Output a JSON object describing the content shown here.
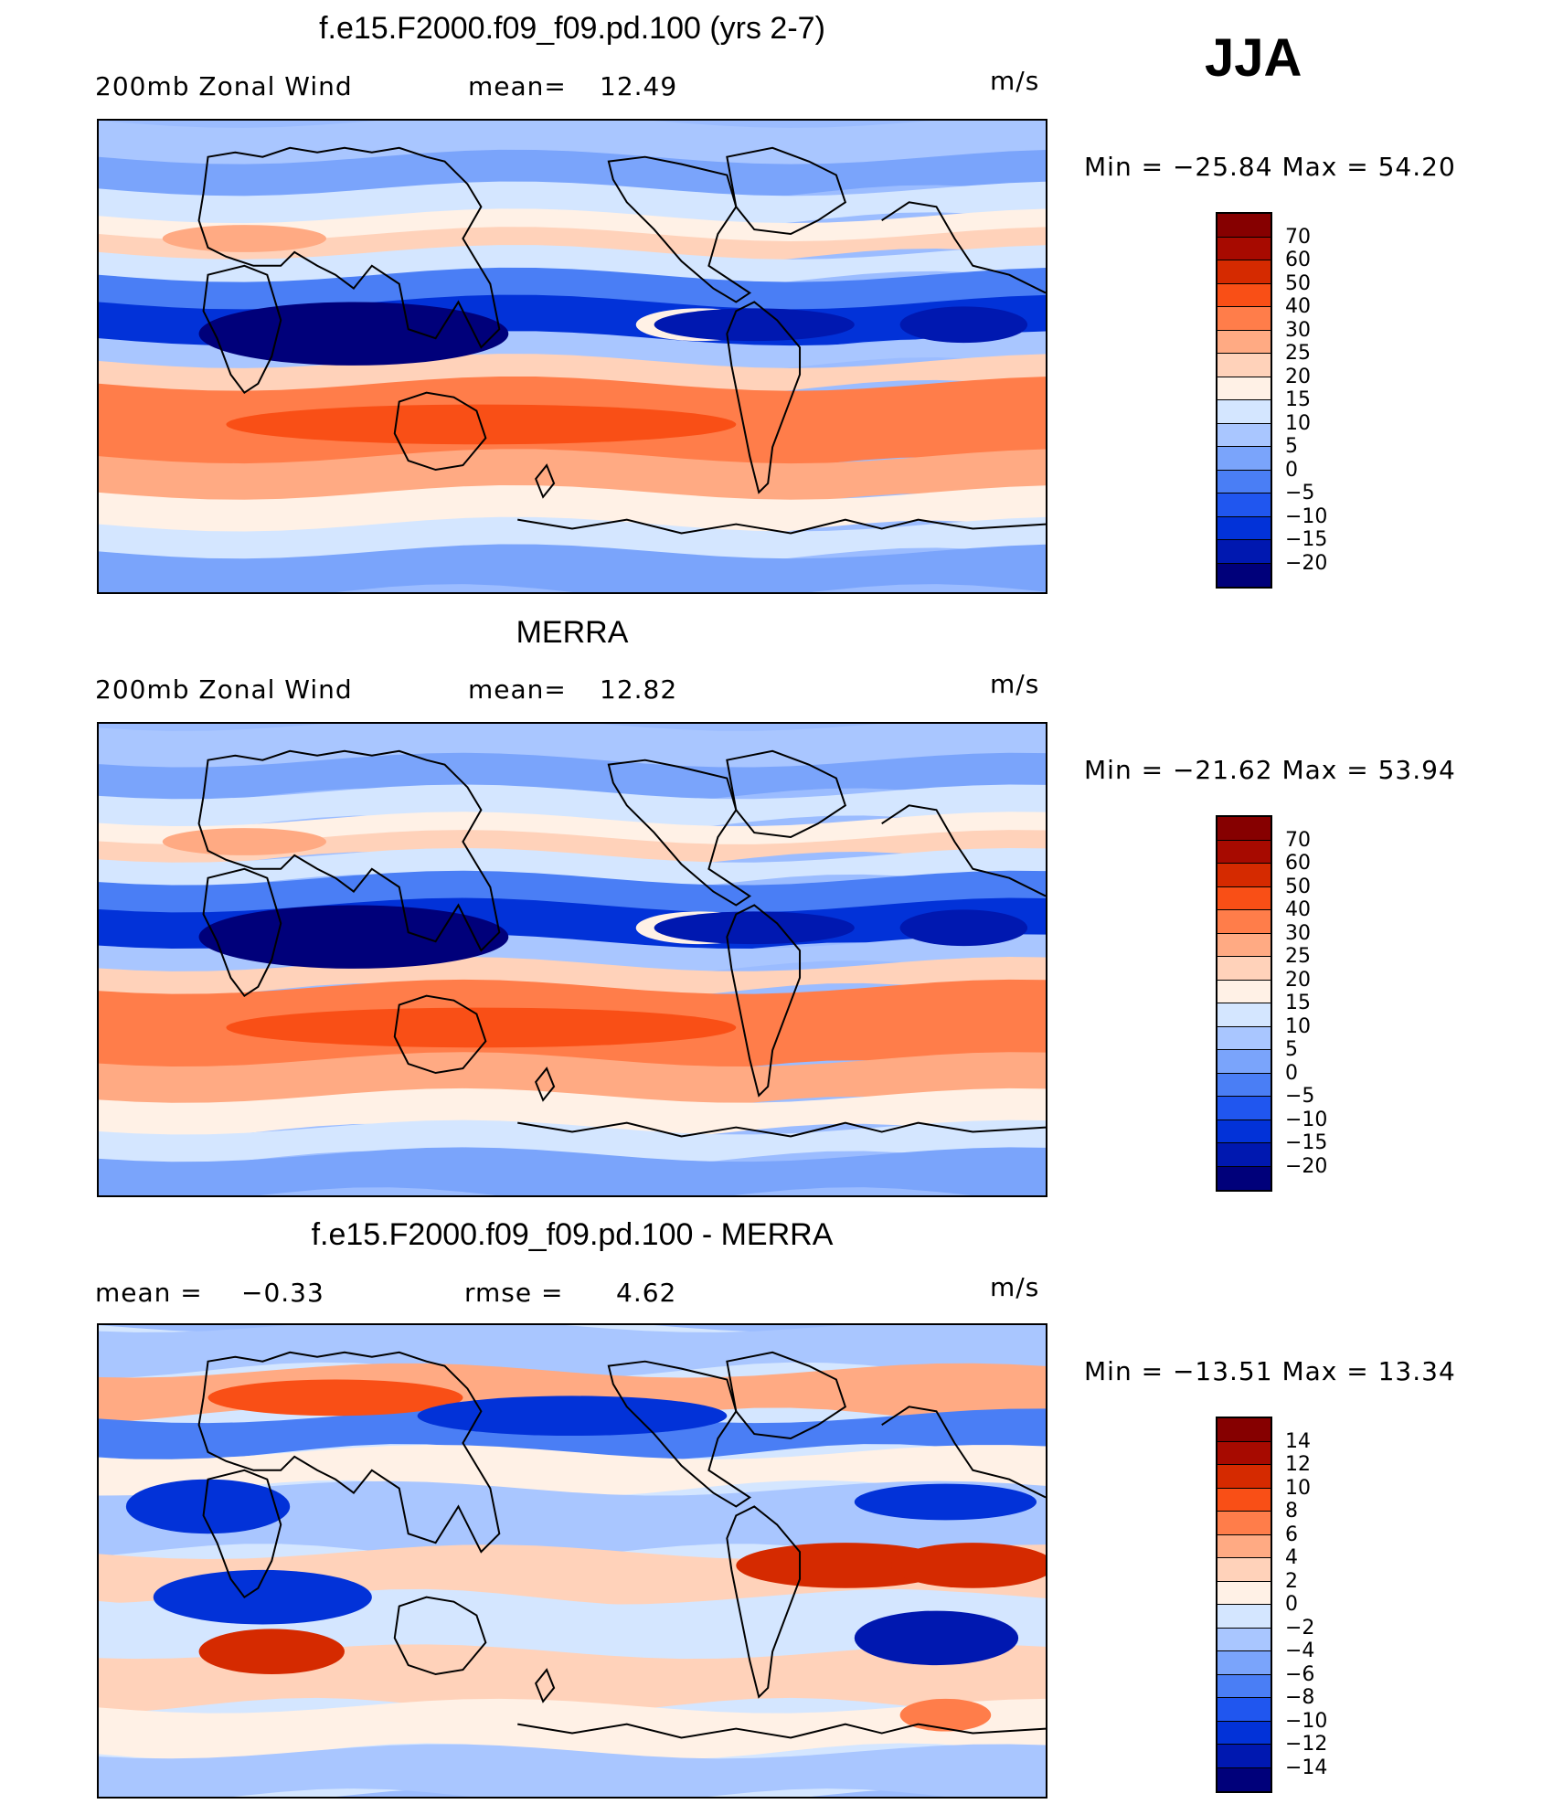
{
  "season": "JJA",
  "colors": {
    "main": [
      "#00007a",
      "#0018b0",
      "#0232d8",
      "#2056ef",
      "#4a7ef5",
      "#7aa4fb",
      "#a9c6ff",
      "#d4e6ff",
      "#fff1e6",
      "#ffd2ba",
      "#ffaa83",
      "#ff7d4a",
      "#f94f16",
      "#d52a00",
      "#a70a00",
      "#860000"
    ],
    "diff": [
      "#00007a",
      "#0018b0",
      "#0232d8",
      "#2056ef",
      "#4a7ef5",
      "#7aa4fb",
      "#a9c6ff",
      "#d4e6ff",
      "#fff1e6",
      "#ffd2ba",
      "#ffaa83",
      "#ff7d4a",
      "#f94f16",
      "#d52a00",
      "#a70a00",
      "#860000"
    ]
  },
  "panels": [
    {
      "title": "f.e15.F2000.f09_f09.pd.100 (yrs 2-7)",
      "left_label": "200mb Zonal Wind",
      "stat_label": "mean=",
      "stat_value": "12.49",
      "units": "m/s",
      "minmax": "Min = −25.84 Max =  54.20"
    },
    {
      "title": "MERRA",
      "left_label": "200mb Zonal Wind",
      "stat_label": "mean=",
      "stat_value": "12.82",
      "units": "m/s",
      "minmax": "Min = −21.62 Max =  53.94"
    },
    {
      "title": "f.e15.F2000.f09_f09.pd.100 - MERRA",
      "left_label": "mean =",
      "left_value": "−0.33",
      "stat_label": "rmse =",
      "stat_value": "4.62",
      "units": "m/s",
      "minmax": "Min = −13.51 Max =  13.34"
    }
  ],
  "chart_data": [
    {
      "type": "heatmap",
      "title": "f.e15.F2000.f09_f09.pd.100 (yrs 2-7)",
      "variable": "200mb Zonal Wind",
      "units": "m/s",
      "mean": 12.49,
      "min": -25.84,
      "max": 54.2,
      "colorbar_levels": [
        "70",
        "60",
        "50",
        "40",
        "30",
        "25",
        "20",
        "15",
        "10",
        "5",
        "0",
        "−5",
        "−10",
        "−15",
        "−20"
      ]
    },
    {
      "type": "heatmap",
      "title": "MERRA",
      "variable": "200mb Zonal Wind",
      "units": "m/s",
      "mean": 12.82,
      "min": -21.62,
      "max": 53.94,
      "colorbar_levels": [
        "70",
        "60",
        "50",
        "40",
        "30",
        "25",
        "20",
        "15",
        "10",
        "5",
        "0",
        "−5",
        "−10",
        "−15",
        "−20"
      ]
    },
    {
      "type": "heatmap",
      "title": "f.e15.F2000.f09_f09.pd.100 - MERRA",
      "units": "m/s",
      "mean": -0.33,
      "rmse": 4.62,
      "min": -13.51,
      "max": 13.34,
      "colorbar_levels": [
        "14",
        "12",
        "10",
        "8",
        "6",
        "4",
        "2",
        "0",
        "−2",
        "−4",
        "−6",
        "−8",
        "−10",
        "−12",
        "−14"
      ]
    }
  ]
}
